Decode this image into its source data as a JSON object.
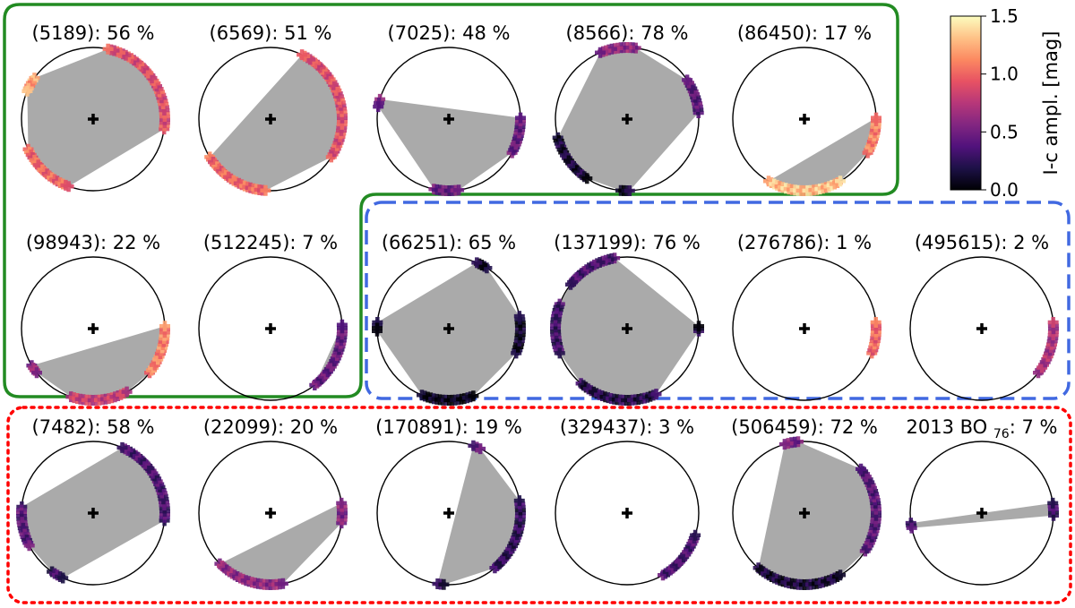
{
  "chart_data": {
    "type": "scatter",
    "description_of_marks": "Each panel: unit circle with centre cross; points on the circle are observations placed at longitude angle (deg, counter-clockwise from +x) and coloured by amplitude; grey polygon is the convex hull of the points.",
    "colorbar": {
      "label": "I-c ampl. [mag]",
      "range": [
        0.0,
        1.5
      ],
      "ticks": [
        "0.0",
        "0.5",
        "1.0",
        "1.5"
      ],
      "colormap": "magma",
      "stops": [
        "#000004",
        "#1d1147",
        "#51127c",
        "#822681",
        "#b73779",
        "#e75263",
        "#fc8961",
        "#fec287",
        "#fcfdbf"
      ]
    },
    "groups": [
      {
        "name": "group-green",
        "style": "solid",
        "color": "#228b22"
      },
      {
        "name": "group-blue",
        "style": "dashed",
        "color": "#4169e1"
      },
      {
        "name": "group-red",
        "style": "dotted",
        "color": "#ff0000"
      }
    ],
    "panels": [
      {
        "label": "(5189): 56 %",
        "group": "green",
        "arcs": [
          [
            -8,
            78,
            0.9
          ],
          [
            145,
            157,
            1.2
          ],
          [
            205,
            250,
            1.0
          ]
        ],
        "hull_override": null
      },
      {
        "label": "(6569): 51 %",
        "group": "green",
        "arcs": [
          [
            -32,
            64,
            0.9
          ],
          [
            212,
            266,
            1.0
          ]
        ]
      },
      {
        "label": "(7025): 48 %",
        "group": "green",
        "arcs": [
          [
            -28,
            1,
            0.45
          ],
          [
            164,
            170,
            0.5
          ],
          [
            258,
            278,
            0.45
          ]
        ]
      },
      {
        "label": "(8566): 78 %",
        "group": "green",
        "arcs": [
          [
            5,
            33,
            0.4
          ],
          [
            83,
            112,
            0.6
          ],
          [
            195,
            236,
            0.15
          ],
          [
            265,
            272,
            0.1
          ]
        ]
      },
      {
        "label": "(86450): 17 %",
        "group": "green",
        "arcs": [
          [
            -28,
            1,
            1.1
          ],
          [
            240,
            300,
            1.3
          ]
        ]
      },
      {
        "label": "(98943): 22 %",
        "group": "green",
        "arcs": [
          [
            -38,
            2,
            1.1
          ],
          [
            211,
            218,
            0.6
          ],
          [
            252,
            298,
            0.8
          ]
        ]
      },
      {
        "label": "(512245): 7 %",
        "group": "green",
        "arcs": [
          [
            -52,
            3,
            0.45
          ]
        ]
      },
      {
        "label": "(66251): 65 %",
        "group": "blue",
        "arcs": [
          [
            -20,
            10,
            0.1
          ],
          [
            58,
            67,
            0.1
          ],
          [
            175,
            182,
            0.1
          ],
          [
            248,
            290,
            0.05
          ]
        ]
      },
      {
        "label": "(137199): 76 %",
        "group": "blue",
        "arcs": [
          [
            -2,
            2,
            0.15
          ],
          [
            100,
            142,
            0.35
          ],
          [
            160,
            200,
            0.3
          ],
          [
            230,
            294,
            0.2
          ]
        ]
      },
      {
        "label": "(276786): 1 %",
        "group": "blue",
        "arcs": [
          [
            -20,
            5,
            1.0
          ]
        ]
      },
      {
        "label": "(495615): 2 %",
        "group": "blue",
        "arcs": [
          [
            -38,
            5,
            0.7
          ]
        ]
      },
      {
        "label": "(7482): 58 %",
        "group": "red",
        "arcs": [
          [
            -6,
            66,
            0.35
          ],
          [
            175,
            207,
            0.4
          ],
          [
            235,
            245,
            0.3
          ]
        ]
      },
      {
        "label": "(22099): 20 %",
        "group": "red",
        "arcs": [
          [
            -8,
            8,
            0.55
          ],
          [
            225,
            280,
            0.6
          ]
        ]
      },
      {
        "label": "(170891): 19 %",
        "group": "red",
        "arcs": [
          [
            -50,
            10,
            0.25
          ],
          [
            261,
            266,
            0.2
          ],
          [
            64,
            70,
            0.4
          ]
        ]
      },
      {
        "label": "(329437): 3 %",
        "group": "red",
        "arcs": [
          [
            -60,
            -18,
            0.35
          ]
        ]
      },
      {
        "label": "(506459): 72 %",
        "group": "red",
        "arcs": [
          [
            -32,
            38,
            0.4
          ],
          [
            95,
            106,
            0.5
          ],
          [
            230,
            300,
            0.15
          ]
        ]
      },
      {
        "label": "2013 BO",
        "label_sub": "76",
        "label_tail": ": 7 %",
        "group": "red",
        "arcs": [
          [
            -2,
            8,
            0.3
          ],
          [
            188,
            192,
            0.35
          ]
        ]
      }
    ]
  }
}
